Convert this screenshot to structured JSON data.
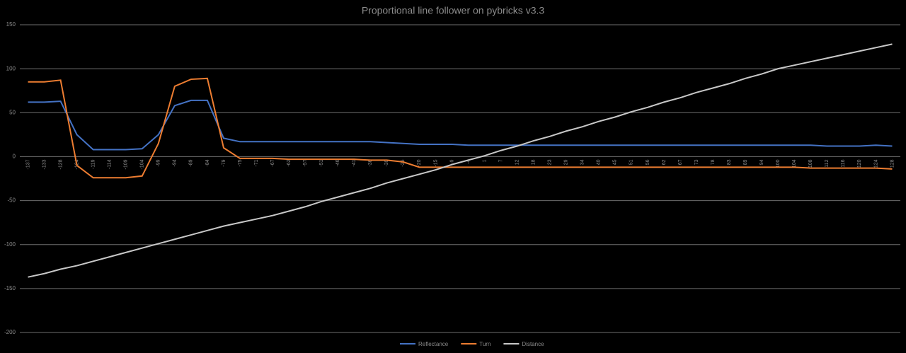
{
  "chart_data": {
    "type": "line",
    "title": "Proportional line follower  on pybricks v3.3",
    "categories": [
      -137,
      -133,
      -128,
      -124,
      -119,
      -114,
      -109,
      -104,
      -99,
      -94,
      -89,
      -84,
      -79,
      -75,
      -71,
      -67,
      -62,
      -57,
      -51,
      -46,
      -41,
      -36,
      -30,
      -25,
      -20,
      -15,
      -9,
      -4,
      1,
      7,
      12,
      18,
      23,
      29,
      34,
      40,
      45,
      51,
      56,
      62,
      67,
      73,
      78,
      83,
      89,
      94,
      100,
      104,
      108,
      112,
      116,
      120,
      124,
      128
    ],
    "series": [
      {
        "name": "Reflectance",
        "color": "#4472c4",
        "values": [
          62,
          62,
          63,
          25,
          8,
          8,
          8,
          9,
          25,
          58,
          64,
          64,
          21,
          17,
          17,
          17,
          17,
          17,
          17,
          17,
          17,
          17,
          16,
          15,
          14,
          14,
          14,
          13,
          13,
          13,
          13,
          13,
          13,
          13,
          13,
          13,
          13,
          13,
          13,
          13,
          13,
          13,
          13,
          13,
          13,
          13,
          13,
          13,
          13,
          12,
          12,
          12,
          13,
          12
        ]
      },
      {
        "name": "Turn",
        "color": "#ed7d31",
        "values": [
          85,
          85,
          87,
          -10,
          -24,
          -24,
          -24,
          -22,
          15,
          80,
          88,
          89,
          10,
          -2,
          -2,
          -2,
          -3,
          -3,
          -3,
          -3,
          -3,
          -4,
          -4,
          -6,
          -12,
          -12,
          -12,
          -12,
          -12,
          -12,
          -12,
          -12,
          -12,
          -12,
          -12,
          -12,
          -12,
          -12,
          -12,
          -12,
          -12,
          -12,
          -12,
          -12,
          -12,
          -12,
          -12,
          -12,
          -13,
          -13,
          -13,
          -13,
          -13,
          -14
        ]
      },
      {
        "name": "Distance",
        "color": "#c8c8c8",
        "values": [
          -137,
          -133,
          -128,
          -124,
          -119,
          -114,
          -109,
          -104,
          -99,
          -94,
          -89,
          -84,
          -79,
          -75,
          -71,
          -67,
          -62,
          -57,
          -51,
          -46,
          -41,
          -36,
          -30,
          -25,
          -20,
          -15,
          -9,
          -4,
          1,
          7,
          12,
          18,
          23,
          29,
          34,
          40,
          45,
          51,
          56,
          62,
          67,
          73,
          78,
          83,
          89,
          94,
          100,
          104,
          108,
          112,
          116,
          120,
          124,
          128
        ]
      }
    ],
    "ylim": [
      -200,
      150
    ],
    "yticks": [
      -200,
      -150,
      -100,
      -50,
      0,
      50,
      100,
      150
    ],
    "grid": true,
    "legend": "bottom"
  }
}
